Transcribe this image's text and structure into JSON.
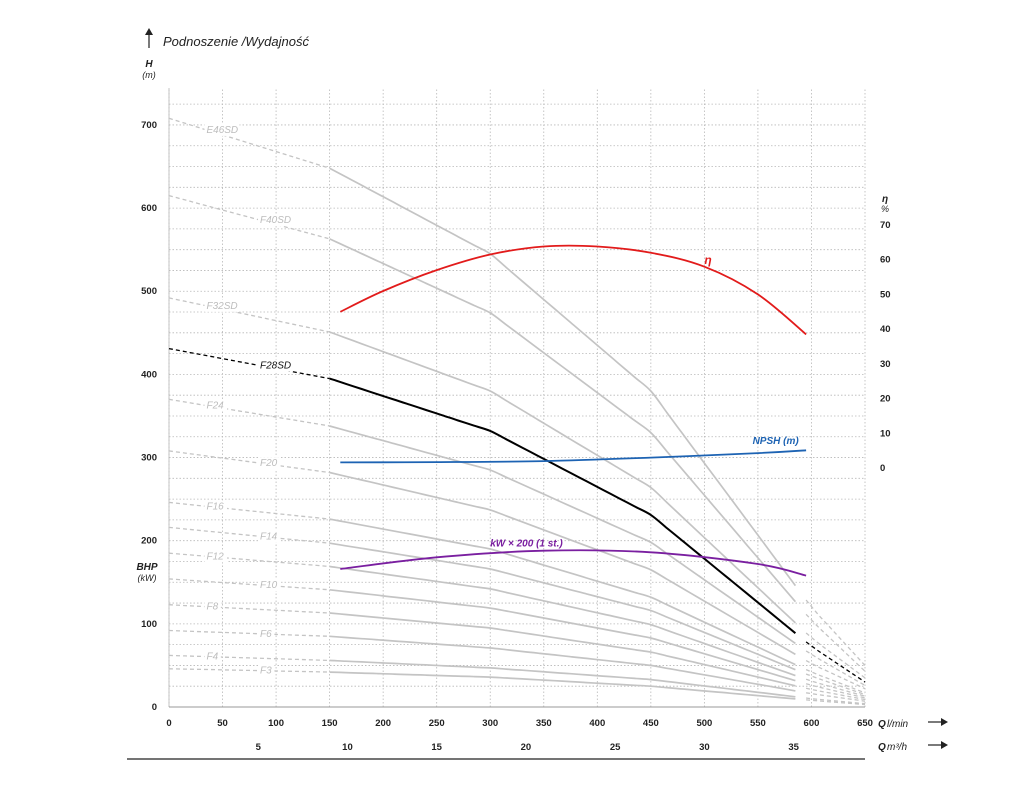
{
  "chart_data": {
    "type": "line",
    "title": "Podnoszenie /Wydajność",
    "left_axis": {
      "label": "H",
      "unit": "(m)",
      "ticks": [
        0,
        100,
        200,
        300,
        400,
        500,
        600,
        700
      ],
      "lim": [
        0,
        730
      ]
    },
    "bhp_axis": {
      "label": "BHP",
      "unit": "(kW)"
    },
    "right_axis": {
      "label": "η",
      "unit": "%",
      "ticks": [
        0,
        10,
        20,
        30,
        40,
        50,
        60,
        70
      ]
    },
    "x_axis": {
      "label": "Q",
      "unit": "l/min",
      "ticks": [
        0,
        50,
        100,
        150,
        200,
        250,
        300,
        350,
        400,
        450,
        500,
        550,
        600,
        650
      ],
      "lim": [
        0,
        650
      ]
    },
    "x2_axis": {
      "label": "Q",
      "unit": "m³/h",
      "ticks": [
        5,
        10,
        15,
        20,
        25,
        30,
        35
      ]
    },
    "colors": {
      "highlight": "#000000",
      "efficiency": "#e21b1b",
      "npsh": "#1d63b3",
      "power": "#7a1fa0",
      "stage": "#c4c4c4"
    },
    "series": [
      {
        "name": "E46SD",
        "x": [
          0,
          150,
          300,
          450,
          600,
          650
        ],
        "y": [
          708,
          648,
          545,
          380,
          120,
          50
        ]
      },
      {
        "name": "F40SD",
        "x": [
          0,
          150,
          300,
          450,
          600,
          650
        ],
        "y": [
          615,
          563,
          474,
          330,
          104,
          43
        ]
      },
      {
        "name": "F32SD",
        "x": [
          0,
          150,
          300,
          450,
          600,
          650
        ],
        "y": [
          492,
          451,
          380,
          264,
          83,
          35
        ]
      },
      {
        "name": "F28SD",
        "x": [
          0,
          150,
          300,
          450,
          600,
          650
        ],
        "y": [
          431,
          395,
          332,
          231,
          73,
          30
        ]
      },
      {
        "name": "F24",
        "x": [
          0,
          150,
          300,
          450,
          600,
          650
        ],
        "y": [
          370,
          338,
          285,
          198,
          63,
          26
        ]
      },
      {
        "name": "F20",
        "x": [
          0,
          150,
          300,
          450,
          600,
          650
        ],
        "y": [
          308,
          282,
          237,
          165,
          52,
          22
        ]
      },
      {
        "name": "F16",
        "x": [
          0,
          150,
          300,
          450,
          600,
          650
        ],
        "y": [
          246,
          226,
          190,
          132,
          42,
          17
        ]
      },
      {
        "name": "F14",
        "x": [
          0,
          150,
          300,
          450,
          600,
          650
        ],
        "y": [
          216,
          197,
          166,
          116,
          37,
          15
        ]
      },
      {
        "name": "F12",
        "x": [
          0,
          150,
          300,
          450,
          600,
          650
        ],
        "y": [
          185,
          169,
          142,
          99,
          31,
          13
        ]
      },
      {
        "name": "F10",
        "x": [
          0,
          150,
          300,
          450,
          600,
          650
        ],
        "y": [
          154,
          141,
          119,
          83,
          26,
          11
        ]
      },
      {
        "name": "F8",
        "x": [
          0,
          150,
          300,
          450,
          600,
          650
        ],
        "y": [
          123,
          113,
          95,
          66,
          21,
          9
        ]
      },
      {
        "name": "F6",
        "x": [
          0,
          150,
          300,
          450,
          600,
          650
        ],
        "y": [
          92,
          85,
          71,
          50,
          16,
          7
        ]
      },
      {
        "name": "F4",
        "x": [
          0,
          150,
          300,
          450,
          600,
          650
        ],
        "y": [
          62,
          56,
          47,
          33,
          10,
          4
        ]
      },
      {
        "name": "F3",
        "x": [
          0,
          150,
          300,
          450,
          600,
          650
        ],
        "y": [
          46,
          42,
          36,
          25,
          8,
          3
        ]
      },
      {
        "name": "η",
        "axis": "right",
        "x": [
          160,
          200,
          250,
          300,
          350,
          400,
          450,
          500,
          550,
          595
        ],
        "y": [
          45,
          51,
          57,
          61.5,
          63.8,
          63.8,
          62,
          58,
          50,
          38.5
        ]
      },
      {
        "name": "NPSH (m)",
        "axis": "right",
        "x": [
          160,
          250,
          350,
          450,
          550,
          595
        ],
        "y": [
          1.6,
          1.7,
          2.0,
          3.0,
          4.3,
          5.1
        ]
      },
      {
        "name": "kW × 200 (1 st.)",
        "x": [
          160,
          250,
          350,
          450,
          550,
          595
        ],
        "y": [
          166,
          180,
          188,
          186,
          172,
          158
        ]
      }
    ],
    "annotations": [
      {
        "text": "η",
        "x": 500,
        "y": 533
      },
      {
        "text": "NPSH (m)",
        "x": 545,
        "y": 316
      },
      {
        "text": "kW × 200 (1 st.)",
        "x": 300,
        "y": 193
      }
    ],
    "grid": true
  }
}
